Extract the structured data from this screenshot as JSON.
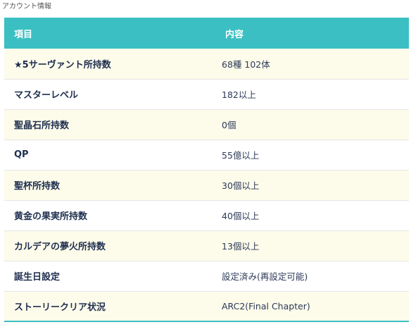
{
  "section": {
    "title": "アカウント情報"
  },
  "table": {
    "headers": {
      "item": "項目",
      "content": "内容"
    },
    "rows": [
      {
        "label": "★5サーヴァント所持数",
        "value": "68種 102体"
      },
      {
        "label": "マスターレベル",
        "value": "182以上"
      },
      {
        "label": "聖晶石所持数",
        "value": "0個"
      },
      {
        "label": "QP",
        "value": "55億以上"
      },
      {
        "label": "聖杯所持数",
        "value": "30個以上"
      },
      {
        "label": "黄金の果実所持数",
        "value": "40個以上"
      },
      {
        "label": "カルデアの夢火所持数",
        "value": "13個以上"
      },
      {
        "label": "誕生日設定",
        "value": "設定済み(再設定可能)"
      },
      {
        "label": "ストーリークリア状況",
        "value": "ARC2(Final Chapter)"
      }
    ]
  },
  "colors": {
    "header_bg": "#3bbfc2",
    "row_alt_bg": "#fdfbea",
    "label_text": "#1f2f4f"
  }
}
